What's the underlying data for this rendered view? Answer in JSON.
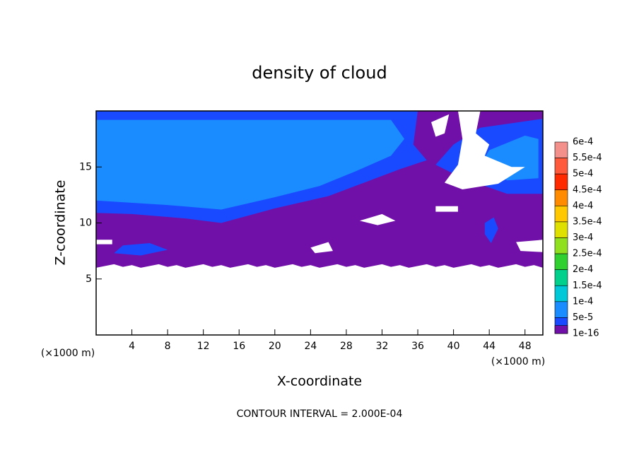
{
  "chart_data": {
    "type": "contour",
    "title": "density of cloud",
    "xlabel": "X-coordinate",
    "ylabel": "Z-coordinate",
    "xunit_left": "(×1000 m)",
    "xunit_right": "(×1000 m)",
    "footer": "CONTOUR INTERVAL = 2.000E-04",
    "xlim": [
      0,
      50
    ],
    "xticks": [
      4,
      8,
      12,
      16,
      20,
      24,
      28,
      32,
      36,
      40,
      44,
      48
    ],
    "ylim": [
      0,
      20
    ],
    "yticks": [
      5,
      10,
      15
    ],
    "colorbar": {
      "levels": [
        {
          "value": 0.0006,
          "label": "6e-4"
        },
        {
          "value": 0.00055,
          "label": "5.5e-4"
        },
        {
          "value": 0.0005,
          "label": "5e-4"
        },
        {
          "value": 0.00045,
          "label": "4.5e-4"
        },
        {
          "value": 0.0004,
          "label": "4e-4"
        },
        {
          "value": 0.00035,
          "label": "3.5e-4"
        },
        {
          "value": 0.0003,
          "label": "3e-4"
        },
        {
          "value": 0.00025,
          "label": "2.5e-4"
        },
        {
          "value": 0.0002,
          "label": "2e-4"
        },
        {
          "value": 0.00015,
          "label": "1.5e-4"
        },
        {
          "value": 0.0001,
          "label": "1e-4"
        },
        {
          "value": 5e-05,
          "label": "5e-5"
        },
        {
          "value": 1e-16,
          "label": "1e-16"
        }
      ],
      "colors": [
        "#f4908c",
        "#ff5a3c",
        "#ff2a00",
        "#ff8c00",
        "#ffc800",
        "#e0e000",
        "#90e020",
        "#30d030",
        "#00d08c",
        "#00c8d8",
        "#1a8cff",
        "#1a4aff",
        "#7010a8"
      ]
    }
  }
}
